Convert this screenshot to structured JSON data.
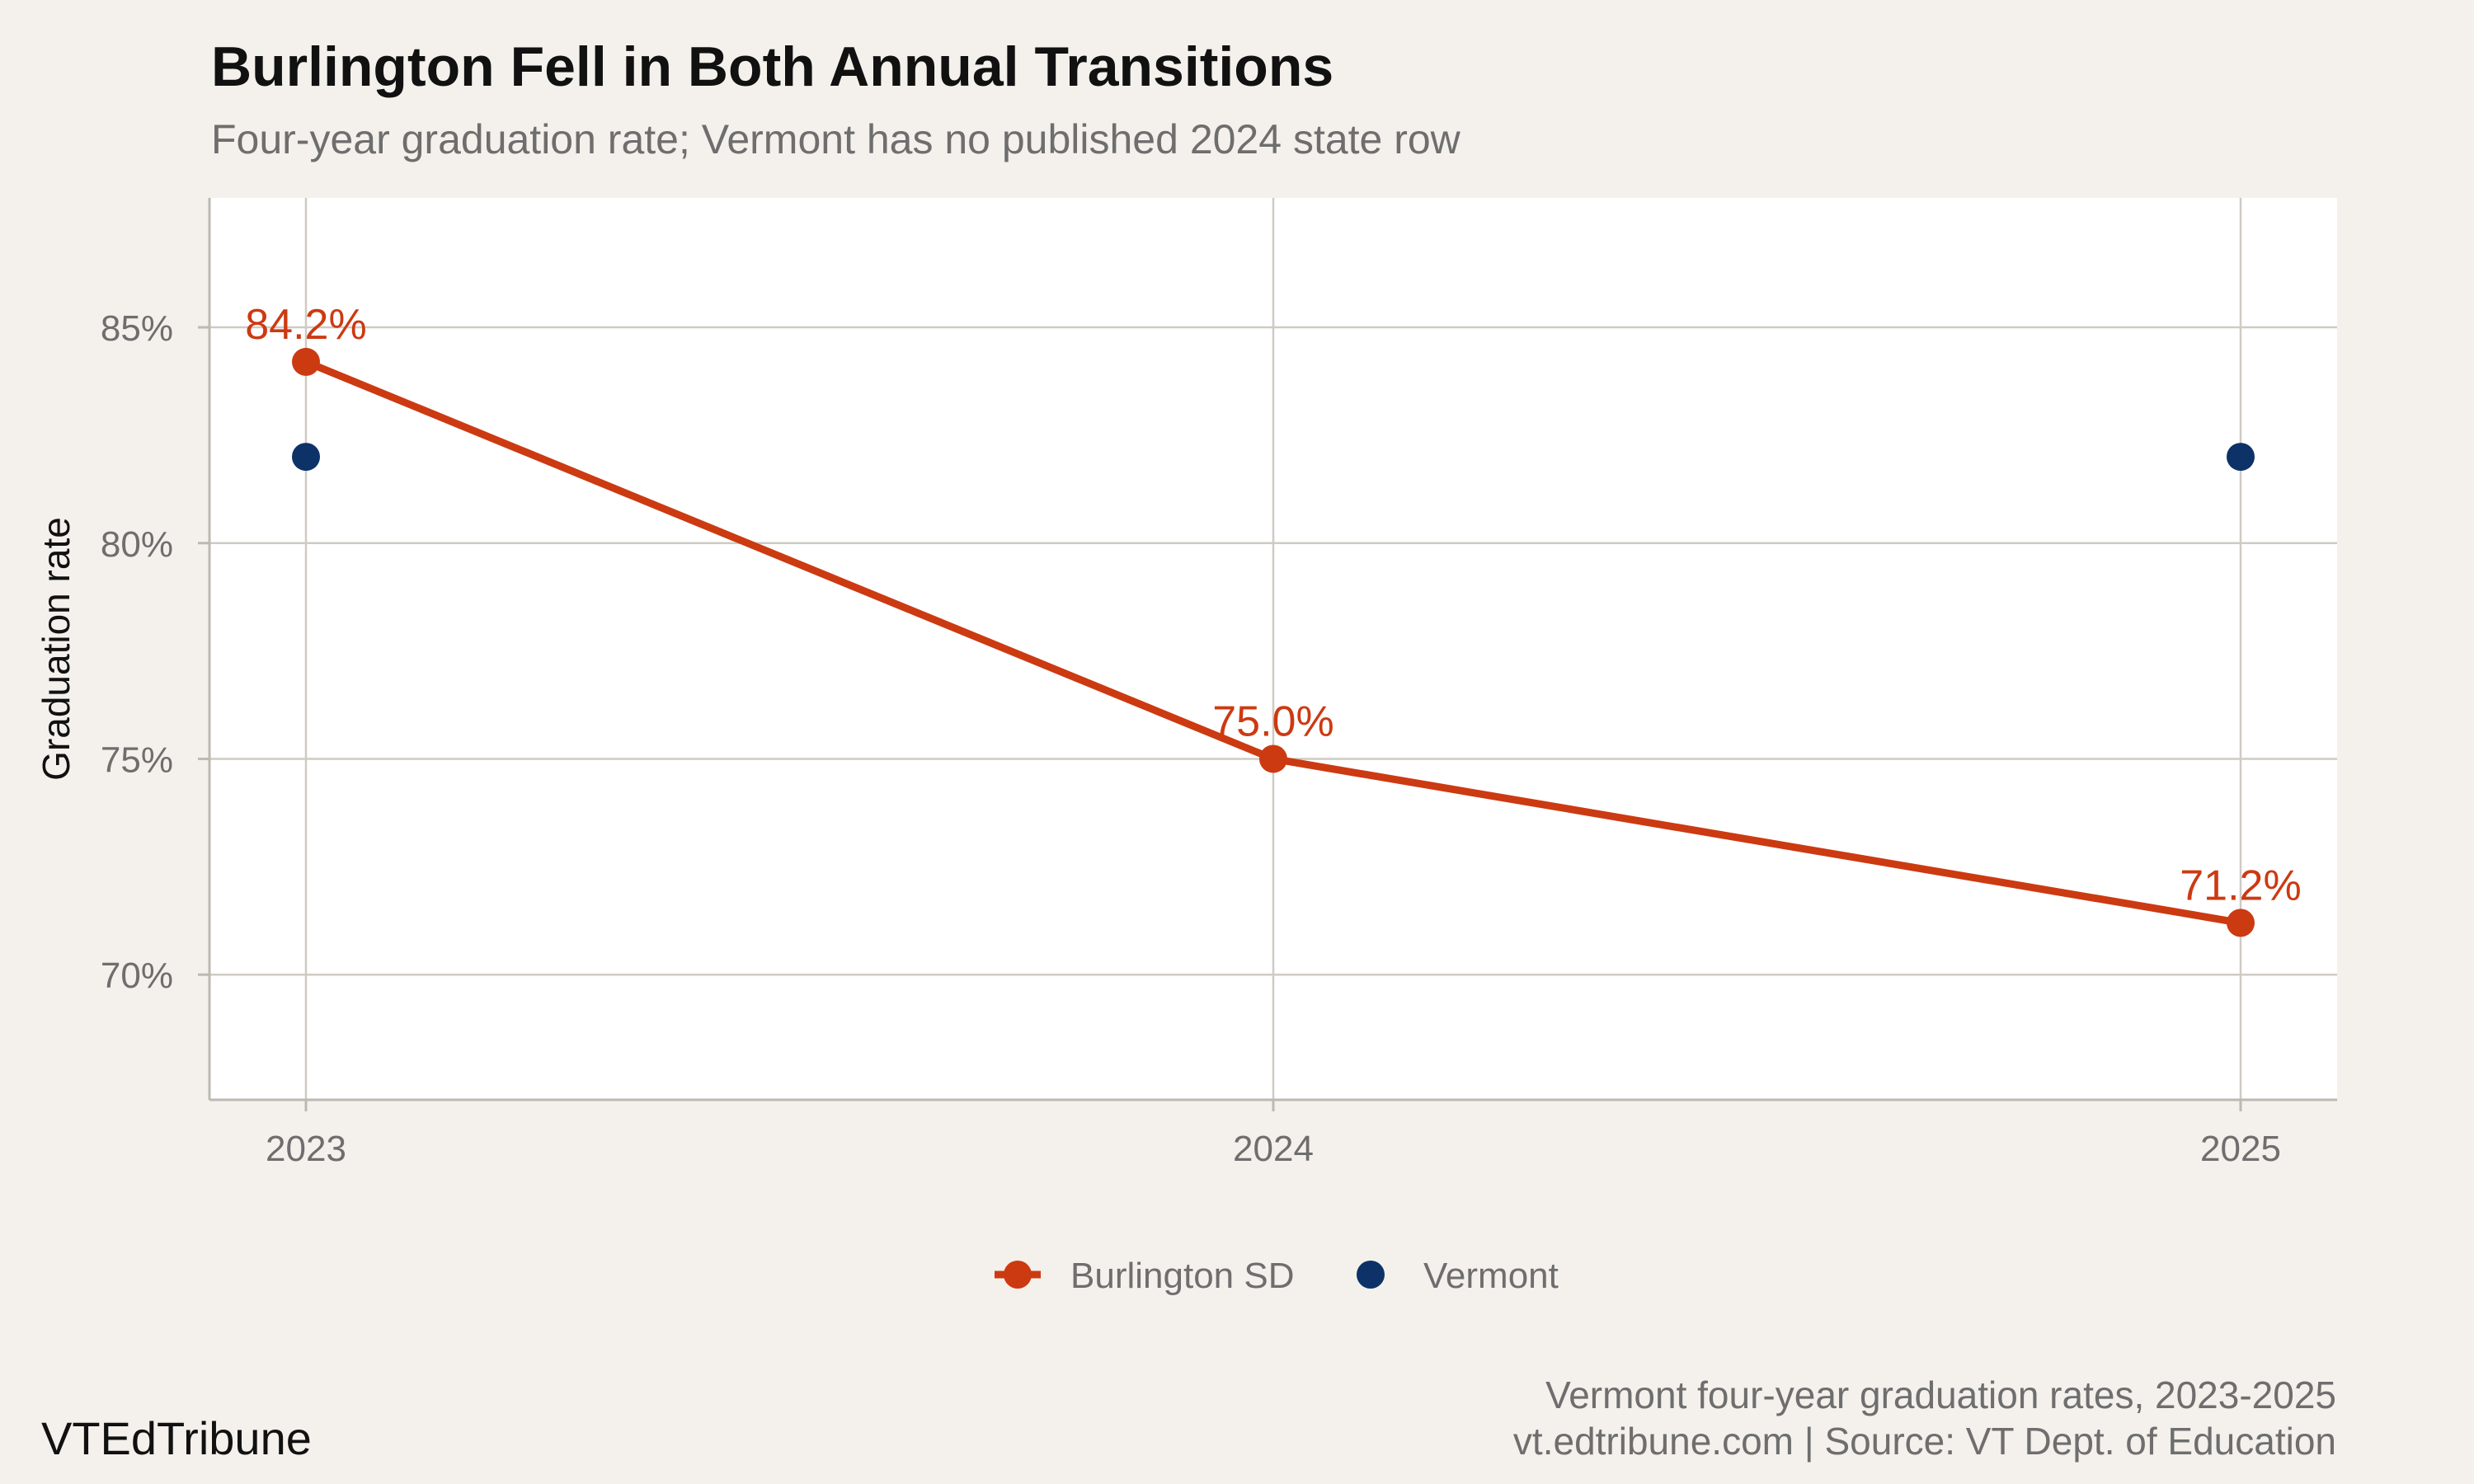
{
  "header": {
    "title": "Burlington Fell in Both Annual Transitions",
    "subtitle": "Four-year graduation rate; Vermont has no published 2024 state row"
  },
  "footer": {
    "brand": "VTEdTribune",
    "caption_line1": "Vermont four-year graduation rates, 2023-2025",
    "caption_line2": "vt.edtribune.com | Source: VT Dept. of Education"
  },
  "colors": {
    "burlington": "#cc3a12",
    "vermont": "#0d3268",
    "grid": "#cfcbc4",
    "panel": "#ffffff",
    "background": "#f4f1ec"
  },
  "chart_data": {
    "type": "line",
    "title": "Burlington Fell in Both Annual Transitions",
    "subtitle": "Four-year graduation rate; Vermont has no published 2024 state row",
    "xlabel": "",
    "ylabel": "Graduation rate",
    "x": [
      2023,
      2024,
      2025
    ],
    "x_tick_labels": [
      "2023",
      "2024",
      "2025"
    ],
    "ylim": [
      67.1,
      88.0
    ],
    "y_ticks": [
      70,
      75,
      80,
      85
    ],
    "y_tick_labels": [
      "70%",
      "75%",
      "80%",
      "85%"
    ],
    "grid": true,
    "legend_position": "bottom",
    "series": [
      {
        "name": "Burlington SD",
        "style": "line+points",
        "color": "#cc3a12",
        "points": [
          {
            "x": 2023,
            "y": 84.2,
            "label": "84.2%"
          },
          {
            "x": 2024,
            "y": 75.0,
            "label": "75.0%"
          },
          {
            "x": 2025,
            "y": 71.2,
            "label": "71.2%"
          }
        ]
      },
      {
        "name": "Vermont",
        "style": "points",
        "color": "#0d3268",
        "points": [
          {
            "x": 2023,
            "y": 82.0
          },
          {
            "x": 2025,
            "y": 82.0
          }
        ]
      }
    ]
  }
}
